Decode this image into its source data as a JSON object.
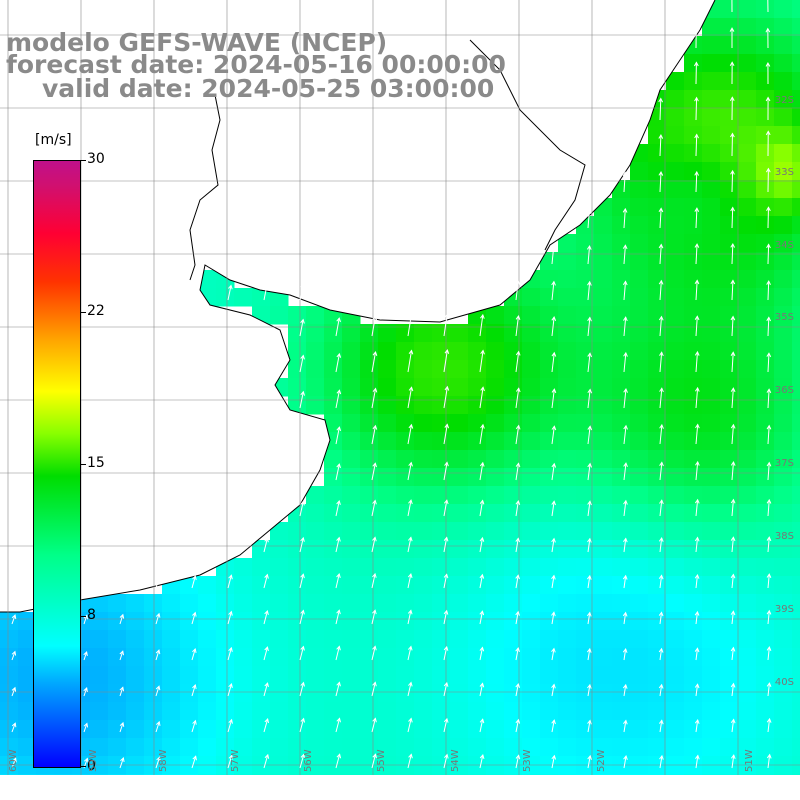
{
  "titles": {
    "line1": "modelo GEFS-WAVE (NCEP)",
    "line2": "forecast date: 2024-05-16 00:00:00",
    "line3": "valid date: 2024-05-25 03:00:00"
  },
  "colorbar": {
    "units": "[m/s]",
    "ticks": [
      "30",
      "22",
      "15",
      "8",
      "0"
    ],
    "min": 0,
    "max": 30,
    "colors": [
      "#0000ff",
      "#00aaff",
      "#00ffff",
      "#00ff88",
      "#00dd00",
      "#88ff00",
      "#ffff00",
      "#ffaa00",
      "#ff3300",
      "#ff0033",
      "#c0108a"
    ]
  },
  "lat_labels": [
    "32S",
    "33S",
    "34S",
    "35S",
    "36S",
    "37S",
    "38S",
    "39S",
    "40S"
  ],
  "lon_labels": [
    "60W",
    "59W",
    "58W",
    "57W",
    "56W",
    "55W",
    "54W",
    "53W",
    "52W",
    "51W"
  ],
  "map": {
    "land_color": "#ffffff",
    "coast_color": "#000000",
    "grid_color": "#888888",
    "wind_direction": "from south-southeast"
  }
}
